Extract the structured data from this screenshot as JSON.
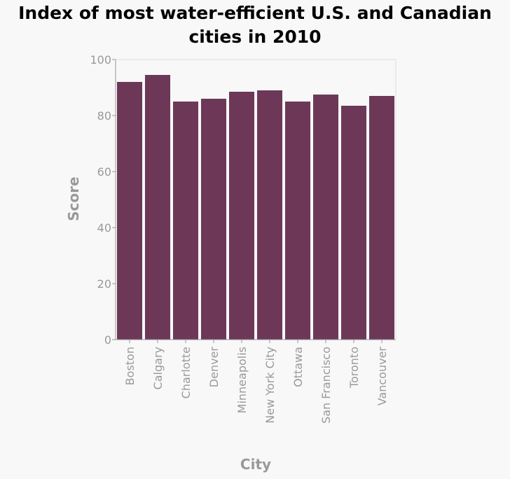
{
  "chart_data": {
    "type": "bar",
    "title_lines": [
      "Index of most water-efficient U.S. and Canadian",
      "cities in 2010"
    ],
    "xlabel": "City",
    "ylabel": "Score",
    "categories": [
      "Boston",
      "Calgary",
      "Charlotte",
      "Denver",
      "Minneapolis",
      "New York City",
      "Ottawa",
      "San Francisco",
      "Toronto",
      "Vancouver"
    ],
    "values": [
      92,
      94.5,
      85,
      86,
      88.5,
      89,
      85,
      87.5,
      83.5,
      87
    ],
    "ylim": [
      0,
      100
    ],
    "yticks": [
      0,
      20,
      40,
      60,
      80,
      100
    ],
    "grid": false,
    "legend": "none",
    "colors": {
      "bar": "#6d3858",
      "axis": "#999999",
      "frame": "#dddddd"
    }
  }
}
